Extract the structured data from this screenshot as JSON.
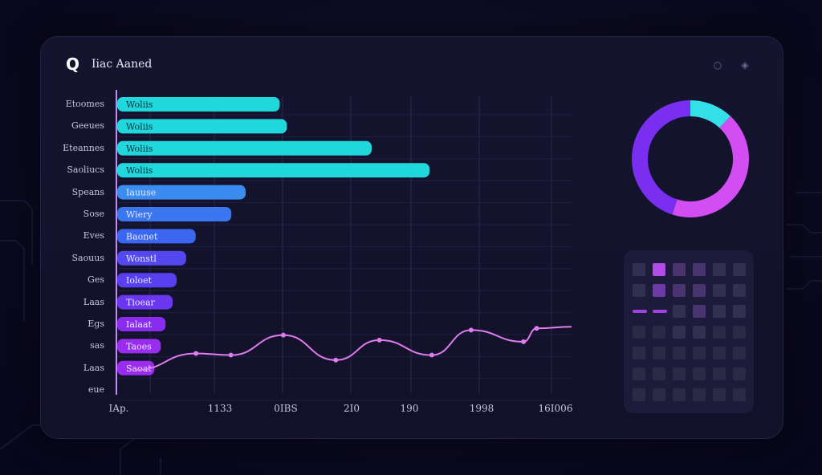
{
  "header": {
    "title": "Iiac Aaned"
  },
  "colors": {
    "cyan": "#20d8dc",
    "blue": "#3a6cf0",
    "indigo": "#5a3ff0",
    "violet": "#8a2cf0",
    "line": "#e07cf0",
    "donut_magenta": "#d24df2",
    "donut_cyan": "#33e0ea",
    "donut_violet": "#7a2ff0"
  },
  "chart_data": [
    {
      "type": "bar",
      "orientation": "horizontal",
      "categories": [
        "Etoomes",
        "Geeues",
        "Eteannes",
        "Saoliucs",
        "Speans",
        "Sose",
        "Eves",
        "Saouus",
        "Ges",
        "Laas",
        "Egs",
        "sas",
        "Laas",
        "eue"
      ],
      "bar_labels": [
        "Woliis",
        "Woliis",
        "Woliis",
        "Woliis",
        "Iauuse",
        "Wiery",
        "Baonet",
        "Wonstl",
        "Ioloet",
        "Tioear",
        "Ialaat",
        "Taoes",
        "Saoat",
        ""
      ],
      "values": [
        205,
        214,
        321,
        394,
        162,
        144,
        99,
        87,
        75,
        70,
        61,
        55,
        47,
        0
      ],
      "bar_colors": [
        "#20d8dc",
        "#20d8dc",
        "#20d8dc",
        "#20d8dc",
        "#3a8cf0",
        "#3a76f0",
        "#3a66f0",
        "#5348f0",
        "#5a3ff0",
        "#6a36f0",
        "#8a2cf0",
        "#9a2cf0",
        "#9a2cf0",
        "#9a2cf0"
      ]
    },
    {
      "type": "line",
      "series": [
        {
          "x_positions": [
            0.0,
            0.14,
            0.22,
            0.34,
            0.46,
            0.56,
            0.68,
            0.77,
            0.89,
            0.92,
            1.0
          ],
          "values": [
            0.18,
            0.38,
            0.36,
            0.6,
            0.3,
            0.54,
            0.36,
            0.66,
            0.52,
            0.68,
            0.7
          ]
        }
      ],
      "xlabels": [
        "IAp.",
        "1133",
        "0IBS",
        "2I0",
        "190",
        "1998",
        "16I006"
      ]
    },
    {
      "type": "pie",
      "donut": true,
      "values": [
        0.12,
        0.43,
        0.45
      ],
      "colors": [
        "#33e0ea",
        "#d24df2",
        "#7a2ff0"
      ]
    },
    {
      "type": "heatmap",
      "rows": 7,
      "cols": 6,
      "values": [
        [
          0.2,
          0.9,
          0.4,
          0.4,
          0.2,
          0.2
        ],
        [
          0.2,
          0.6,
          0.4,
          0.4,
          0.2,
          0.2
        ],
        [
          0.8,
          0.8,
          0.3,
          0.4,
          0.2,
          0.2
        ],
        [
          0.15,
          0.15,
          0.2,
          0.2,
          0.15,
          0.15
        ],
        [
          0.15,
          0.15,
          0.15,
          0.15,
          0.15,
          0.15
        ],
        [
          0.15,
          0.15,
          0.15,
          0.15,
          0.15,
          0.15
        ],
        [
          0.15,
          0.15,
          0.15,
          0.15,
          0.15,
          0.15
        ]
      ]
    }
  ]
}
